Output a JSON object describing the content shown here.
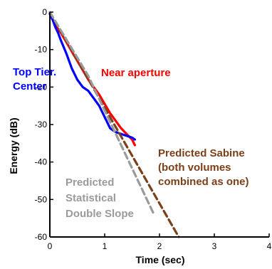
{
  "chart_data": {
    "type": "line",
    "title": "",
    "xlabel": "Time (sec)",
    "ylabel": "Energy (dB)",
    "xlim": [
      0,
      4
    ],
    "ylim": [
      -60,
      0
    ],
    "xticks": [
      0,
      1,
      2,
      3,
      4
    ],
    "yticks": [
      0,
      -10,
      -20,
      -30,
      -40,
      -50,
      -60
    ],
    "xtick_labels": [
      "0",
      "1",
      "2",
      "3",
      "4"
    ],
    "ytick_labels": [
      "0",
      "-10",
      "-20",
      "-30",
      "-40",
      "-50",
      "-60"
    ],
    "grid": false,
    "legend": "none",
    "series": [
      {
        "name": "Near aperture",
        "color": "#ff0000",
        "style": "solid",
        "x": [
          0,
          0.05,
          0.1,
          0.15,
          0.2,
          0.3,
          0.4,
          0.5,
          0.6,
          0.7,
          0.8,
          0.9,
          1.0,
          1.1,
          1.2,
          1.3,
          1.4,
          1.5,
          1.55
        ],
        "y": [
          -0.5,
          -2,
          -3.5,
          -4.5,
          -5.5,
          -8,
          -10.5,
          -13,
          -15.5,
          -18,
          -20,
          -22,
          -24.5,
          -27,
          -29,
          -31,
          -32.5,
          -34,
          -35.5
        ]
      },
      {
        "name": "Top Tier. Center",
        "color": "#0000ff",
        "style": "solid",
        "x": [
          0,
          0.05,
          0.1,
          0.15,
          0.2,
          0.3,
          0.4,
          0.5,
          0.6,
          0.7,
          0.8,
          0.9,
          1.0,
          1.1,
          1.2,
          1.3,
          1.4,
          1.5,
          1.55
        ],
        "y": [
          -0.5,
          -2,
          -4,
          -5.5,
          -7.5,
          -11,
          -15,
          -18,
          -20,
          -21,
          -23,
          -25,
          -28,
          -31,
          -32,
          -32.5,
          -33,
          -33.5,
          -34
        ]
      },
      {
        "name": "Predicted Sabine (both volumes combined as one)",
        "color": "#7b3f1a",
        "style": "dashed",
        "x": [
          0,
          2.35
        ],
        "y": [
          0,
          -60
        ]
      },
      {
        "name": "Predicted Statistical Double Slope",
        "color": "#9a9a9a",
        "style": "dashed",
        "x": [
          0,
          0.7,
          1.9
        ],
        "y": [
          0,
          -17,
          -54
        ]
      }
    ],
    "annotations": [
      {
        "lines": [
          "Near aperture"
        ],
        "color": "#ff0000"
      },
      {
        "lines": [
          "Top Tier.",
          "Center"
        ],
        "color": "#0000ff"
      },
      {
        "lines": [
          "Predicted Sabine",
          "(both volumes",
          "combined as one)"
        ],
        "color": "#7b3f1a"
      },
      {
        "lines": [
          "Predicted",
          "Statistical",
          "Double Slope"
        ],
        "color": "#9a9a9a"
      }
    ]
  }
}
